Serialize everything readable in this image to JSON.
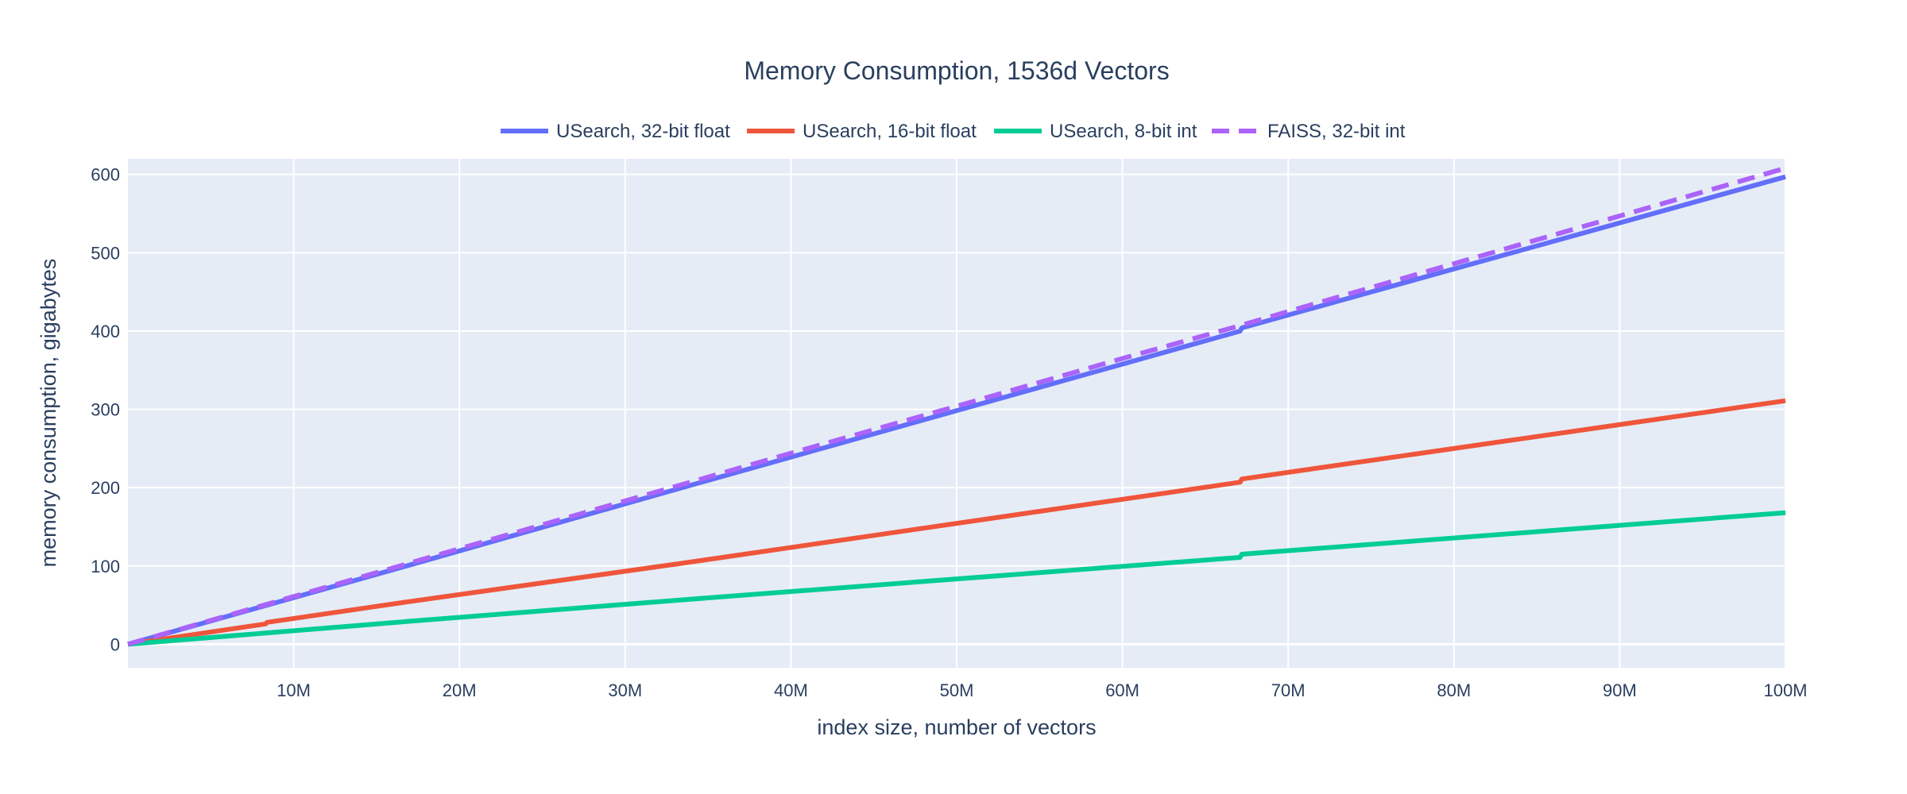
{
  "chart_data": {
    "type": "line",
    "title": "Memory Consumption, 1536d Vectors",
    "xlabel": "index size, number of vectors",
    "ylabel": "memory consumption, gigabytes",
    "xlim": [
      0,
      100000000
    ],
    "ylim": [
      -30,
      600
    ],
    "x_ticks": [
      {
        "value": 10000000,
        "label": "10M"
      },
      {
        "value": 20000000,
        "label": "20M"
      },
      {
        "value": 30000000,
        "label": "30M"
      },
      {
        "value": 40000000,
        "label": "40M"
      },
      {
        "value": 50000000,
        "label": "50M"
      },
      {
        "value": 60000000,
        "label": "60M"
      },
      {
        "value": 70000000,
        "label": "70M"
      },
      {
        "value": 80000000,
        "label": "80M"
      },
      {
        "value": 90000000,
        "label": "90M"
      },
      {
        "value": 100000000,
        "label": "100M"
      }
    ],
    "y_ticks": [
      {
        "value": 0,
        "label": "0"
      },
      {
        "value": 100,
        "label": "100"
      },
      {
        "value": 200,
        "label": "200"
      },
      {
        "value": 300,
        "label": "300"
      },
      {
        "value": 400,
        "label": "400"
      },
      {
        "value": 500,
        "label": "500"
      },
      {
        "value": 600,
        "label": "600"
      }
    ],
    "grid": true,
    "legend_position": "top-center",
    "background_color": "#e5ecf6",
    "series": [
      {
        "name": "USearch, 32-bit float",
        "color": "#636efa",
        "dash": "solid",
        "x": [
          0,
          8400000,
          16800000,
          33600000,
          67100000,
          67200000,
          100000000
        ],
        "y": [
          0,
          50,
          100,
          201,
          400,
          404,
          597
        ]
      },
      {
        "name": "USearch, 16-bit float",
        "color": "#ef553b",
        "dash": "solid",
        "x": [
          0,
          8300000,
          8400000,
          16800000,
          33600000,
          67100000,
          67200000,
          100000000
        ],
        "y": [
          0,
          26,
          28,
          54,
          104,
          207,
          211,
          311
        ]
      },
      {
        "name": "USearch, 8-bit int",
        "color": "#00cc96",
        "dash": "solid",
        "x": [
          0,
          16800000,
          33600000,
          67100000,
          67200000,
          100000000
        ],
        "y": [
          0,
          29,
          57,
          111,
          115,
          168
        ]
      },
      {
        "name": "FAISS, 32-bit int",
        "color": "#ab63fa",
        "dash": "dash",
        "x": [
          0,
          10000000,
          20000000,
          30000000,
          40000000,
          50000000,
          60000000,
          67100000,
          70000000,
          80000000,
          90000000,
          100000000
        ],
        "y": [
          0,
          61,
          122,
          183,
          244,
          304,
          365,
          407,
          425,
          486,
          547,
          608
        ]
      }
    ]
  }
}
